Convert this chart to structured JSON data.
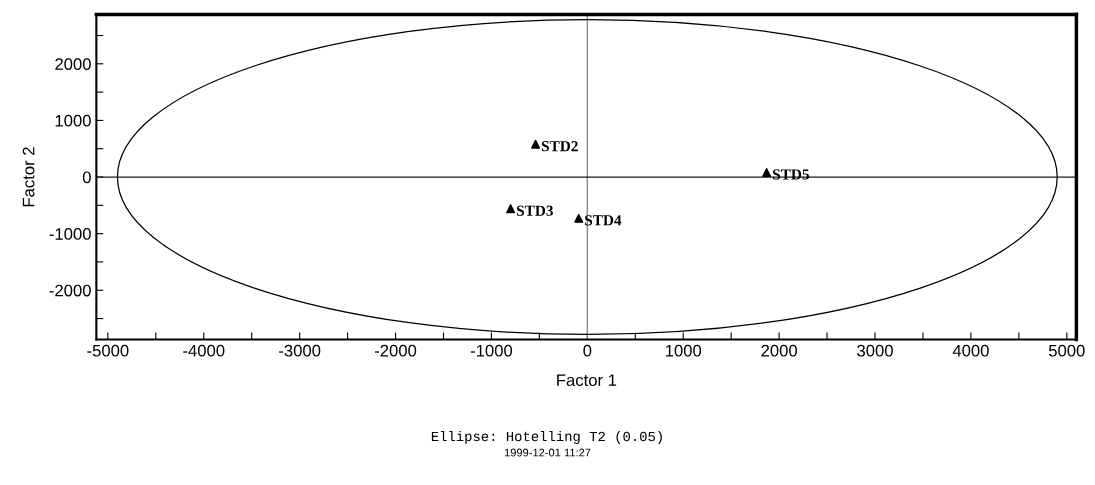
{
  "chart_data": {
    "type": "scatter",
    "xlabel": "Factor 1",
    "ylabel": "Factor 2",
    "xlim": [
      -5120,
      5100
    ],
    "ylim": [
      -2870,
      2870
    ],
    "xticks": [
      -5000,
      {
        "value": -4500,
        "label": null
      },
      -4000,
      {
        "value": -3500,
        "label": null
      },
      -3000,
      {
        "value": -2500,
        "label": null
      },
      -2000,
      {
        "value": -1500,
        "label": null
      },
      -1000,
      {
        "value": -500,
        "label": null
      },
      0,
      {
        "value": 500,
        "label": null
      },
      1000,
      {
        "value": 1500,
        "label": null
      },
      2000,
      {
        "value": 2500,
        "label": null
      },
      3000,
      {
        "value": 3500,
        "label": null
      },
      4000,
      {
        "value": 4500,
        "label": null
      },
      5000
    ],
    "yticks": [
      {
        "value": -2500,
        "label": null
      },
      -2000,
      {
        "value": -1500,
        "label": null
      },
      -1000,
      {
        "value": -500,
        "label": null
      },
      0,
      {
        "value": 500,
        "label": null
      },
      1000,
      {
        "value": 1500,
        "label": null
      },
      2000,
      {
        "value": 2500,
        "label": null
      }
    ],
    "series": [
      {
        "color": "#000000",
        "marker": "triangle",
        "x": [
          -540,
          -800,
          -90,
          1870
        ],
        "values": [
          580,
          -560,
          -730,
          80
        ]
      }
    ],
    "ref_lines": [
      {
        "axis": "x",
        "value": 0,
        "color": "#808080"
      },
      {
        "axis": "y",
        "value": 0,
        "color": "#1a1a1a"
      }
    ],
    "annotations": [
      {
        "text": "STD2",
        "x": -540,
        "y": 580
      },
      {
        "text": "STD3",
        "x": -800,
        "y": -560
      },
      {
        "text": "STD4",
        "x": -90,
        "y": -730
      },
      {
        "text": "STD5",
        "x": 1870,
        "y": 80
      },
      "Ellipse: Hotelling T2 (0.05)",
      "1999-12-01 11:27"
    ],
    "grid": false,
    "legend": false
  }
}
